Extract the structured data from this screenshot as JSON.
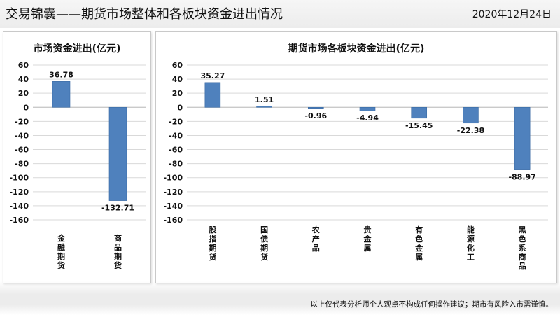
{
  "header": {
    "title": "交易锦囊——期货市场整体和各板块资金进出情况",
    "date": "2020年12月24日"
  },
  "footer": {
    "disclaimer": "以上仅代表分析师个人观点不构成任何操作建议；期市有风险入市需谨慎。"
  },
  "colors": {
    "bar": "#4f81bd",
    "bar_edge": "#3a6aa3",
    "gridline": "#d9d9d9"
  },
  "chart_data": [
    {
      "type": "bar",
      "title": "市场资金进出(亿元)",
      "categories": [
        "金融期货",
        "商品期货"
      ],
      "values": [
        36.78,
        -132.71
      ],
      "value_labels": [
        "36.78",
        "-132.71"
      ],
      "ylim": [
        -160,
        60
      ],
      "yticks": [
        60,
        40,
        20,
        0,
        -20,
        -40,
        -60,
        -80,
        -100,
        -120,
        -140,
        -160
      ],
      "grid": true,
      "legend": "none"
    },
    {
      "type": "bar",
      "title": "期货市场各板块资金进出(亿元)",
      "categories": [
        "股指期货",
        "国债期货",
        "农产品",
        "贵金属",
        "有色金属",
        "能源化工",
        "黑色系商品"
      ],
      "values": [
        35.27,
        1.51,
        -0.96,
        -4.94,
        -15.45,
        -22.38,
        -88.97
      ],
      "value_labels": [
        "35.27",
        "1.51",
        "-0.96",
        "-4.94",
        "-15.45",
        "-22.38",
        "-88.97"
      ],
      "ylim": [
        -160,
        60
      ],
      "yticks": [
        60,
        40,
        20,
        0,
        -20,
        -40,
        -60,
        -80,
        -100,
        -120,
        -140,
        -160
      ],
      "grid": true,
      "legend": "none"
    }
  ]
}
